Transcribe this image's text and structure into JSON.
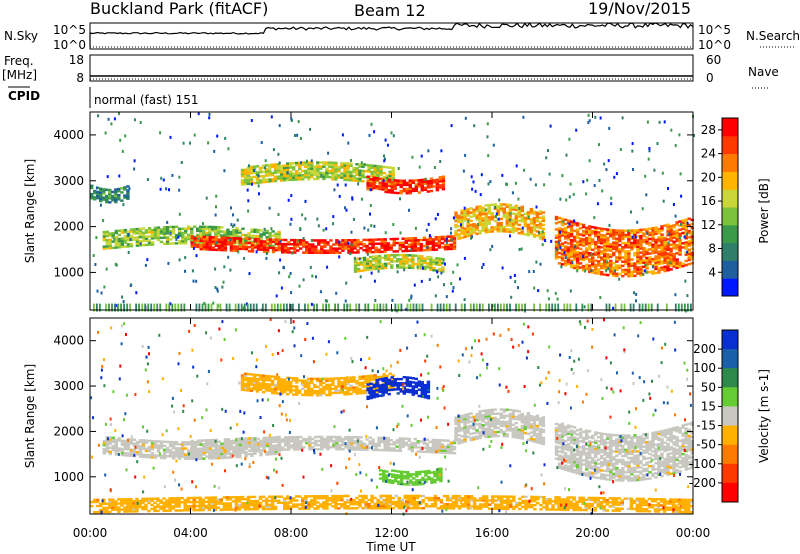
{
  "header": {
    "title": "Buckland Park (fitACF)",
    "beam": "Beam 12",
    "date": "19/Nov/2015"
  },
  "top_panels": {
    "nsky": {
      "left_label": "N.Sky",
      "right_label": "N.Search",
      "left_ticks": [
        "10^5",
        "10^0"
      ],
      "right_ticks": [
        "10^5",
        "10^0"
      ]
    },
    "freq": {
      "left_label": "Freq.",
      "left_unit": "[MHz]",
      "right_label": "Nave",
      "left_ticks": [
        "18",
        "8"
      ],
      "right_ticks": [
        "60",
        "0"
      ]
    },
    "cpid": {
      "label": "CPID",
      "text": "normal (fast) 151"
    }
  },
  "chart_data": [
    {
      "type": "heatmap",
      "title": "",
      "xlabel": "Time UT",
      "ylabel": "Slant Range [km]",
      "x_ticks": [
        "00:00",
        "04:00",
        "08:00",
        "12:00",
        "16:00",
        "20:00",
        "00:00"
      ],
      "y_ticks": [
        1000,
        2000,
        3000,
        4000
      ],
      "xlim": [
        0,
        24
      ],
      "ylim": [
        180,
        4500
      ],
      "colorbar": {
        "label": "Power [dB]",
        "ticks": [
          4,
          8,
          12,
          16,
          20,
          24,
          28
        ],
        "range": [
          0,
          30
        ],
        "colors": [
          "#0018ff",
          "#1f5fa0",
          "#2f7f6a",
          "#3b9a4a",
          "#7cc23a",
          "#c8d63a",
          "#ffb400",
          "#ff7a00",
          "#ff3a00",
          "#ff0000"
        ]
      },
      "echo_bands": [
        {
          "t_start": 0.0,
          "t_end": 1.5,
          "range_km": [
            2600,
            2900
          ],
          "power_db": 8
        },
        {
          "t_start": 0.5,
          "t_end": 7.5,
          "range_km": [
            1500,
            1900
          ],
          "power_db": 14
        },
        {
          "t_start": 4.0,
          "t_end": 14.5,
          "range_km": [
            1500,
            1800
          ],
          "power_db": 28
        },
        {
          "t_start": 6.0,
          "t_end": 12.0,
          "range_km": [
            2900,
            3300
          ],
          "power_db": 16
        },
        {
          "t_start": 11.0,
          "t_end": 14.0,
          "range_km": [
            2800,
            3100
          ],
          "power_db": 28
        },
        {
          "t_start": 14.5,
          "t_end": 18.0,
          "range_km": [
            1700,
            2300
          ],
          "power_db": 20
        },
        {
          "t_start": 18.5,
          "t_end": 24.0,
          "range_km": [
            1200,
            2200
          ],
          "power_db": 24
        },
        {
          "t_start": 10.5,
          "t_end": 14.0,
          "range_km": [
            1000,
            1300
          ],
          "power_db": 16
        }
      ]
    },
    {
      "type": "heatmap",
      "title": "",
      "xlabel": "Time UT",
      "ylabel": "Slant Range [km]",
      "x_ticks": [
        "00:00",
        "04:00",
        "08:00",
        "12:00",
        "16:00",
        "20:00",
        "00:00"
      ],
      "y_ticks": [
        1000,
        2000,
        3000,
        4000
      ],
      "xlim": [
        0,
        24
      ],
      "ylim": [
        180,
        4500
      ],
      "colorbar": {
        "label": "Velocity [m s-1]",
        "ticks": [
          200,
          100,
          50,
          15,
          -15,
          -50,
          -100,
          -200
        ],
        "colors": [
          "#0a2fd0",
          "#1a5fa8",
          "#2e8a4a",
          "#66cc33",
          "#c8c8c0",
          "#ffb000",
          "#ff7a00",
          "#ff3a00",
          "#ff0000"
        ]
      },
      "echo_bands": [
        {
          "t_start": 0.5,
          "t_end": 7.5,
          "range_km": [
            1500,
            1900
          ],
          "velocity": 0
        },
        {
          "t_start": 4.0,
          "t_end": 14.5,
          "range_km": [
            1500,
            1800
          ],
          "velocity": 0
        },
        {
          "t_start": 6.0,
          "t_end": 12.0,
          "range_km": [
            2900,
            3300
          ],
          "velocity": -40
        },
        {
          "t_start": 11.0,
          "t_end": 13.5,
          "range_km": [
            2700,
            3100
          ],
          "velocity": 150
        },
        {
          "t_start": 11.5,
          "t_end": 14.0,
          "range_km": [
            900,
            1200
          ],
          "velocity": 30
        },
        {
          "t_start": 14.5,
          "t_end": 18.0,
          "range_km": [
            1700,
            2300
          ],
          "velocity": 0
        },
        {
          "t_start": 18.5,
          "t_end": 24.0,
          "range_km": [
            1200,
            2200
          ],
          "velocity": 0
        },
        {
          "t_start": 0.0,
          "t_end": 24.0,
          "range_km": [
            200,
            500
          ],
          "velocity": -40
        }
      ]
    }
  ]
}
